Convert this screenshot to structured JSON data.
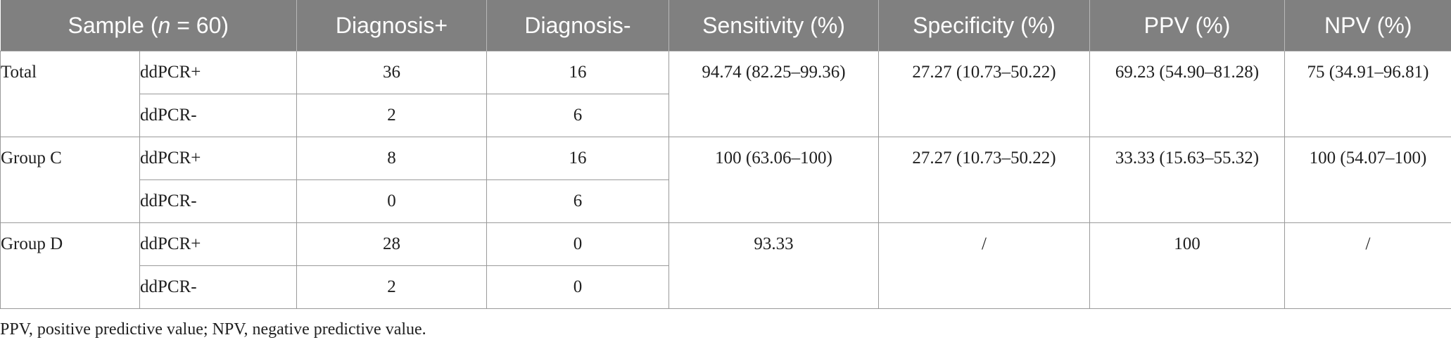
{
  "header": {
    "sample_prefix": "Sample (",
    "sample_n": "n",
    "sample_suffix": " = 60)",
    "diag_pos": "Diagnosis+",
    "diag_neg": "Diagnosis-",
    "sensitivity": "Sensitivity (%)",
    "specificity": "Specificity (%)",
    "ppv": "PPV (%)",
    "npv": "NPV (%)"
  },
  "groups": [
    {
      "name": "Total",
      "row_pos": {
        "label": "ddPCR+",
        "diag_pos": "36",
        "diag_neg": "16"
      },
      "row_neg": {
        "label": "ddPCR-",
        "diag_pos": "2",
        "diag_neg": "6"
      },
      "sensitivity": "94.74 (82.25–99.36)",
      "specificity": "27.27 (10.73–50.22)",
      "ppv": "69.23 (54.90–81.28)",
      "npv": "75 (34.91–96.81)"
    },
    {
      "name": "Group C",
      "row_pos": {
        "label": "ddPCR+",
        "diag_pos": "8",
        "diag_neg": "16"
      },
      "row_neg": {
        "label": "ddPCR-",
        "diag_pos": "0",
        "diag_neg": "6"
      },
      "sensitivity": "100 (63.06–100)",
      "specificity": "27.27 (10.73–50.22)",
      "ppv": "33.33 (15.63–55.32)",
      "npv": "100 (54.07–100)"
    },
    {
      "name": "Group D",
      "row_pos": {
        "label": "ddPCR+",
        "diag_pos": "28",
        "diag_neg": "0"
      },
      "row_neg": {
        "label": "ddPCR-",
        "diag_pos": "2",
        "diag_neg": "0"
      },
      "sensitivity": "93.33",
      "specificity": "/",
      "ppv": "100",
      "npv": "/"
    }
  ],
  "footnote": "PPV, positive predictive value; NPV, negative predictive value."
}
